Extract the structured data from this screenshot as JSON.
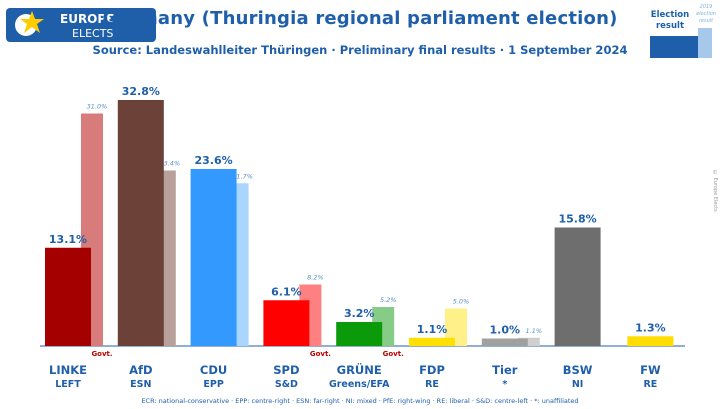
{
  "header": {
    "logo_line1": "EUROPE",
    "logo_line2": "ELECTS",
    "title": "Germany (Thuringia regional parliament election)",
    "subtitle": "Source: Landeswahlleiter Thüringen · Preliminary final results · 1 September 2024"
  },
  "legend": {
    "current_label_line1": "Election",
    "current_label_line2": "result",
    "previous_label_line1": "2019",
    "previous_label_line2": "election",
    "previous_label_line3": "result",
    "current_color": "#1f5faa",
    "previous_color": "#a6c8ea"
  },
  "copyright": "© Europe Elects",
  "chart_data": {
    "type": "bar",
    "categories": [
      "LINKE",
      "AfD",
      "CDU",
      "SPD",
      "GRÜNE",
      "FDP",
      "Tier",
      "BSW",
      "FW"
    ],
    "groups": [
      "LEFT",
      "ESN",
      "EPP",
      "S&D",
      "Greens/EFA",
      "RE",
      "*",
      "NI",
      "RE"
    ],
    "govt": [
      true,
      false,
      false,
      true,
      true,
      false,
      false,
      false,
      false
    ],
    "govt_label": "Govt.",
    "series": [
      {
        "name": "Election result",
        "values": [
          13.1,
          32.8,
          23.6,
          6.1,
          3.2,
          1.1,
          1.0,
          15.8,
          1.3
        ]
      },
      {
        "name": "2019 election result",
        "values": [
          31.0,
          23.4,
          21.7,
          8.2,
          5.2,
          5.0,
          1.1,
          null,
          null
        ]
      }
    ],
    "value_labels": [
      "13.1%",
      "32.8%",
      "23.6%",
      "6.1%",
      "3.2%",
      "1.1%",
      "1.0%",
      "15.8%",
      "1.3%"
    ],
    "prev_labels": [
      "31.0%",
      "23.4%",
      "21.7%",
      "8.2%",
      "5.2%",
      "5.0%",
      "1.1%",
      null,
      null
    ],
    "colors": [
      "#a50000",
      "#6b4138",
      "#3399ff",
      "#ff0000",
      "#0a9a0a",
      "#ffe000",
      "#a0a0a0",
      "#6e6e6e",
      "#ffdd00"
    ],
    "prev_colors": [
      "#d77b7b",
      "#b9a19b",
      "#a9d5ff",
      "#ff8080",
      "#86cc86",
      "#fff08a",
      "#cfcfcf",
      null,
      null
    ],
    "ylim": [
      0,
      35
    ]
  },
  "footer": "ECR: national-conservative · EPP: centre-right · ESN: far-right · NI: mixed · PfE: right-wing · RE: liberal · S&D: centre-left · *: unaffiliated"
}
